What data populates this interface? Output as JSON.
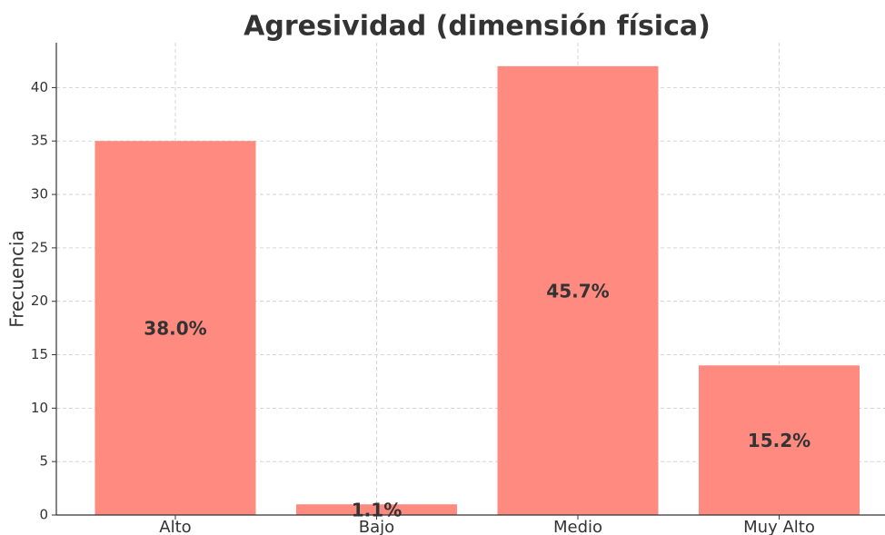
{
  "chart_data": {
    "type": "bar",
    "title": "Agresividad (dimensión física)",
    "y_label": "Frecuencia",
    "categories": [
      "Alto",
      "Bajo",
      "Medio",
      "Muy Alto"
    ],
    "values": [
      35,
      1,
      42,
      14
    ],
    "percentage_labels": [
      "38.0%",
      "1.1%",
      "45.7%",
      "15.2%"
    ],
    "color": "#ff8a80",
    "ylim": [
      0,
      44.2
    ],
    "yticks": [
      0,
      5,
      10,
      15,
      20,
      25,
      30,
      35,
      40
    ],
    "grid": true
  }
}
